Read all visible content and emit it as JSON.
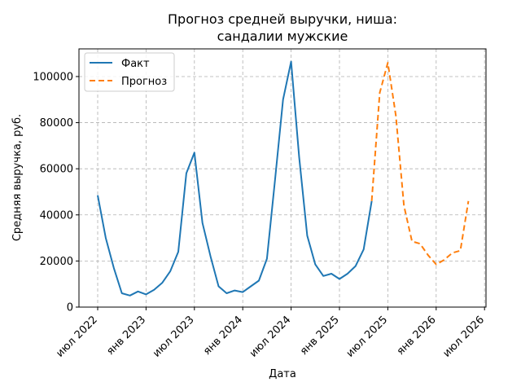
{
  "chart_data": {
    "type": "line",
    "title_line1": "Прогноз средней выручки, ниша:",
    "title_line2": "сандалии мужские",
    "xlabel": "Дата",
    "ylabel": "Средняя выручка, руб.",
    "x_tick_labels": [
      "июл 2022",
      "янв 2023",
      "июл 2023",
      "янв 2024",
      "июл 2024",
      "янв 2025",
      "июл 2025",
      "янв 2026",
      "июл 2026"
    ],
    "y_tick_labels": [
      "0",
      "20000",
      "40000",
      "60000",
      "80000",
      "100000"
    ],
    "ylim": [
      0,
      112000
    ],
    "grid": true,
    "legend_position": "top-left",
    "series": [
      {
        "name": "Факт",
        "color": "#1f77b4",
        "style": "solid",
        "x": [
          "2022-07",
          "2022-08",
          "2022-09",
          "2022-10",
          "2022-11",
          "2022-12",
          "2023-01",
          "2023-02",
          "2023-03",
          "2023-04",
          "2023-05",
          "2023-06",
          "2023-07",
          "2023-08",
          "2023-09",
          "2023-10",
          "2023-11",
          "2023-12",
          "2024-01",
          "2024-02",
          "2024-03",
          "2024-04",
          "2024-05",
          "2024-06",
          "2024-07",
          "2024-08",
          "2024-09",
          "2024-10",
          "2024-11",
          "2024-12",
          "2025-01",
          "2025-02",
          "2025-03",
          "2025-04",
          "2025-05"
        ],
        "values": [
          48500,
          30000,
          17000,
          6000,
          5000,
          6800,
          5500,
          7500,
          10500,
          15500,
          24000,
          58000,
          67000,
          36500,
          22000,
          9000,
          6000,
          7200,
          6500,
          9000,
          11500,
          21000,
          55000,
          90000,
          106500,
          65000,
          31000,
          18500,
          13500,
          14500,
          12200,
          14500,
          17800,
          25000,
          46000
        ]
      },
      {
        "name": "Прогноз",
        "color": "#ff7f0e",
        "style": "dashed",
        "x": [
          "2025-05",
          "2025-06",
          "2025-07",
          "2025-08",
          "2025-09",
          "2025-10",
          "2025-11",
          "2025-12",
          "2026-01",
          "2026-02",
          "2026-03",
          "2026-04",
          "2026-05"
        ],
        "values": [
          46000,
          93000,
          106000,
          83000,
          44000,
          28500,
          27500,
          22500,
          18500,
          20500,
          23500,
          24500,
          46000
        ]
      }
    ]
  }
}
